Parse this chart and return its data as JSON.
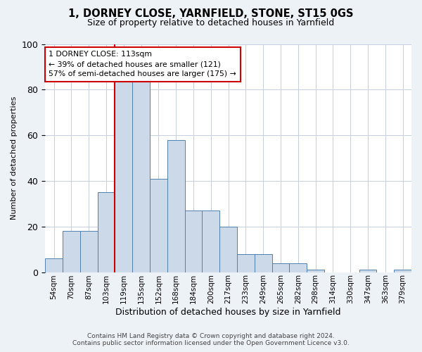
{
  "title": "1, DORNEY CLOSE, YARNFIELD, STONE, ST15 0GS",
  "subtitle": "Size of property relative to detached houses in Yarnfield",
  "xlabel": "Distribution of detached houses by size in Yarnfield",
  "ylabel": "Number of detached properties",
  "bin_labels": [
    "54sqm",
    "70sqm",
    "87sqm",
    "103sqm",
    "119sqm",
    "135sqm",
    "152sqm",
    "168sqm",
    "184sqm",
    "200sqm",
    "217sqm",
    "233sqm",
    "249sqm",
    "265sqm",
    "282sqm",
    "298sqm",
    "314sqm",
    "330sqm",
    "347sqm",
    "363sqm",
    "379sqm"
  ],
  "bar_heights": [
    6,
    18,
    18,
    35,
    84,
    84,
    41,
    58,
    27,
    27,
    20,
    8,
    8,
    4,
    4,
    1,
    0,
    0,
    1,
    0,
    1
  ],
  "bar_color": "#ccd9e8",
  "bar_edge_color": "#5080b0",
  "red_line_x": 4,
  "highlight_color": "#cc0000",
  "ylim": [
    0,
    100
  ],
  "yticks": [
    0,
    20,
    40,
    60,
    80,
    100
  ],
  "annotation_text": "1 DORNEY CLOSE: 113sqm\n← 39% of detached houses are smaller (121)\n57% of semi-detached houses are larger (175) →",
  "annotation_box_edgecolor": "#cc0000",
  "footnote": "Contains HM Land Registry data © Crown copyright and database right 2024.\nContains public sector information licensed under the Open Government Licence v3.0.",
  "bg_color": "#edf2f7",
  "plot_bg_color": "#ffffff",
  "grid_color": "#c5cfe0"
}
